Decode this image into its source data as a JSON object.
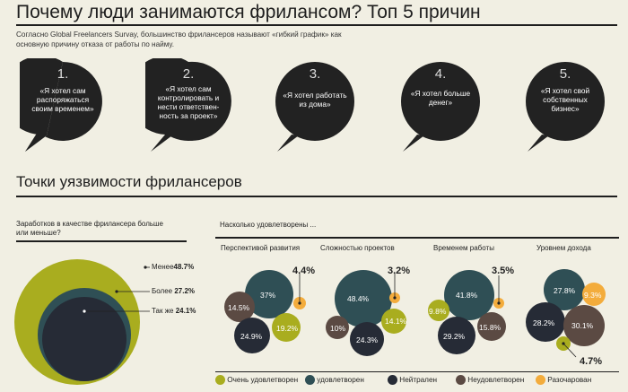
{
  "header": {
    "title": "Почему люди занимаются фрилансом? Топ 5 причин",
    "intro": "Согласно Global Freelancers Survay, большинство фрилансеров называют «гибкий график» как основную причину отказа от работы по найму."
  },
  "reasons": [
    {
      "num": "1.",
      "text": "«Я хотел сам распоряжаться своим временем»"
    },
    {
      "num": "2.",
      "text": "«Я хотел сам контролировать и нести ответствен-ность за проект»"
    },
    {
      "num": "3.",
      "text": "«Я хотел работать из дома»"
    },
    {
      "num": "4.",
      "text": "«Я хотел больше денег»"
    },
    {
      "num": "5.",
      "text": "«Я хотел свой собственных бизнес»"
    }
  ],
  "section2": {
    "title": "Точки уязвимости фрилансеров"
  },
  "earnings": {
    "question": "Заработков в качестве фрилансера больше или меньше?",
    "items": [
      {
        "label": "Менее",
        "value": "48.7%"
      },
      {
        "label": "Более",
        "value": "27.2%"
      },
      {
        "label": "Так же",
        "value": "24.1%"
      }
    ]
  },
  "satisfaction": {
    "question": "Насколько удовлетворены ...",
    "columns": [
      {
        "title": "Перспективой развития",
        "values": [
          "37%",
          "4.4%",
          "14.5%",
          "24.9%",
          "19.2%"
        ]
      },
      {
        "title": "Сложностью проектов",
        "values": [
          "48.4%",
          "3.2%",
          "10%",
          "24.3%",
          "14.1%"
        ]
      },
      {
        "title": "Временем работы",
        "values": [
          "41.8%",
          "3.5%",
          "9.8%",
          "29.2%",
          "15.8%"
        ]
      },
      {
        "title": "Уровнем дохода",
        "values": [
          "27.8%",
          "9.3%",
          "28.2%",
          "30.1%",
          "4.7%"
        ]
      }
    ]
  },
  "legend": [
    {
      "label": "Очень удовлетворен",
      "color": "#a9ad1f"
    },
    {
      "label": "удовлетворен",
      "color": "#2f4f55"
    },
    {
      "label": "Нейтрален",
      "color": "#262b36"
    },
    {
      "label": "Неудовлетворен",
      "color": "#5b4a43"
    },
    {
      "label": "Разочарован",
      "color": "#f3ac3c"
    }
  ]
}
